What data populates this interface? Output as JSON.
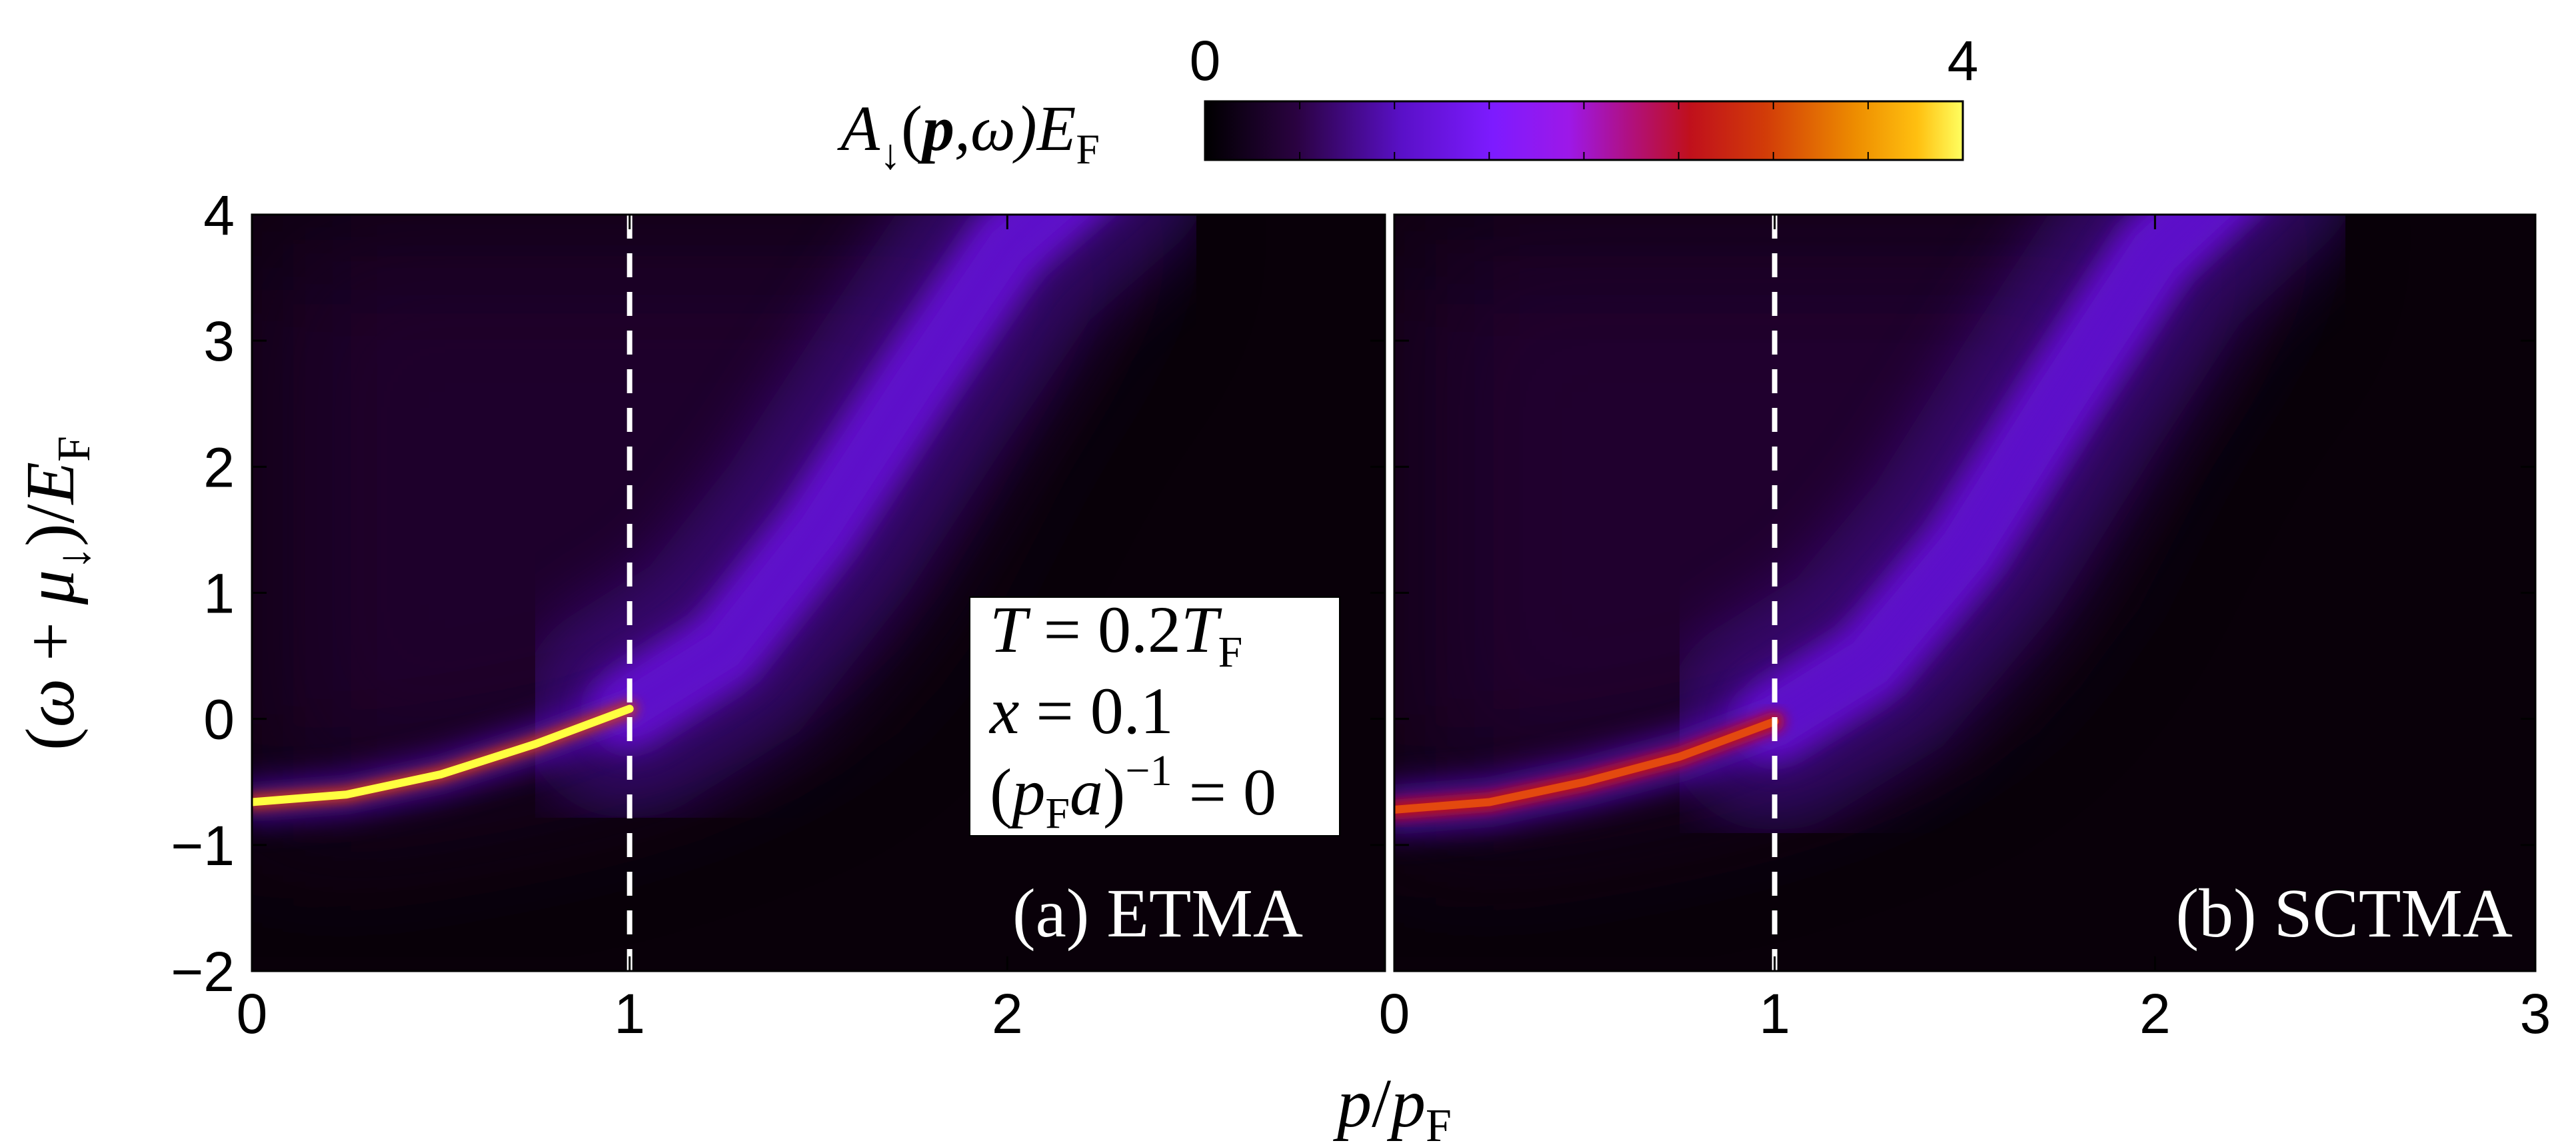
{
  "chart_data": {
    "type": "heatmap",
    "colorbar": {
      "label_main": "A",
      "label_sub": "↓",
      "label_args": "(",
      "label_p": "p",
      "label_omega": ",ω)",
      "label_E": "E",
      "label_Esub": "F",
      "min": 0,
      "max": 4,
      "min_label": "0",
      "max_label": "4",
      "colors": [
        "#000000",
        "#2a0240",
        "#5a10c8",
        "#7d1bff",
        "#9d18e8",
        "#c0101c",
        "#d23c08",
        "#ee8e00",
        "#ffc010",
        "#ffff60"
      ]
    },
    "x_axis": {
      "label_p": "p",
      "label_slash": "/",
      "label_pF": "p",
      "label_pF_sub": "F",
      "ticks_a": [
        "0",
        "1",
        "2"
      ],
      "ticks_b": [
        "0",
        "1",
        "2",
        "3"
      ],
      "range": [
        0,
        3
      ]
    },
    "y_axis": {
      "label_prefix": "(",
      "label_omega": "ω",
      "label_plus": " + ",
      "label_mu": "μ",
      "label_mu_sub": "↓",
      "label_suffix": ")/",
      "label_E": "E",
      "label_E_sub": "F",
      "ticks": [
        "4",
        "3",
        "2",
        "1",
        "0",
        "−1",
        "−2"
      ],
      "range": [
        -2,
        4
      ]
    },
    "panels": [
      {
        "id": "a",
        "label": "(a) ETMA",
        "x_range": [
          0,
          3
        ],
        "y_range": [
          -2,
          4
        ],
        "fermi_momentum_line": 1,
        "quasiparticle_branch": {
          "p": [
            0,
            0.25,
            0.5,
            0.75,
            1.0
          ],
          "omega": [
            -0.66,
            -0.6,
            -0.44,
            -0.2,
            0.08
          ],
          "peak_weight": 4
        },
        "continuum_branch": {
          "p": [
            1.0,
            1.25,
            1.5,
            1.75,
            2.0,
            2.25
          ],
          "omega": [
            0.08,
            0.55,
            1.5,
            2.65,
            3.75,
            4.4
          ]
        }
      },
      {
        "id": "b",
        "label": "(b) SCTMA",
        "x_range": [
          0,
          3
        ],
        "y_range": [
          -2,
          4
        ],
        "fermi_momentum_line": 1,
        "quasiparticle_branch": {
          "p": [
            0,
            0.25,
            0.5,
            0.75,
            1.0
          ],
          "omega": [
            -0.72,
            -0.66,
            -0.5,
            -0.3,
            -0.02
          ],
          "peak_weight": 2.4
        },
        "continuum_branch": {
          "p": [
            1.0,
            1.25,
            1.5,
            1.75,
            2.0,
            2.25
          ],
          "omega": [
            -0.02,
            0.45,
            1.35,
            2.55,
            3.7,
            4.4
          ]
        }
      }
    ],
    "legend_box": {
      "T_var": "T",
      "T_eq": " = 0.2",
      "T_unit": "T",
      "T_sub": "F",
      "x_line": "x",
      "x_eq": " = 0.1",
      "a_open": "(",
      "a_p": "p",
      "a_psub": "F",
      "a_a": "a",
      "a_close": ")",
      "a_exp": "−1",
      "a_eq": " = 0"
    }
  }
}
